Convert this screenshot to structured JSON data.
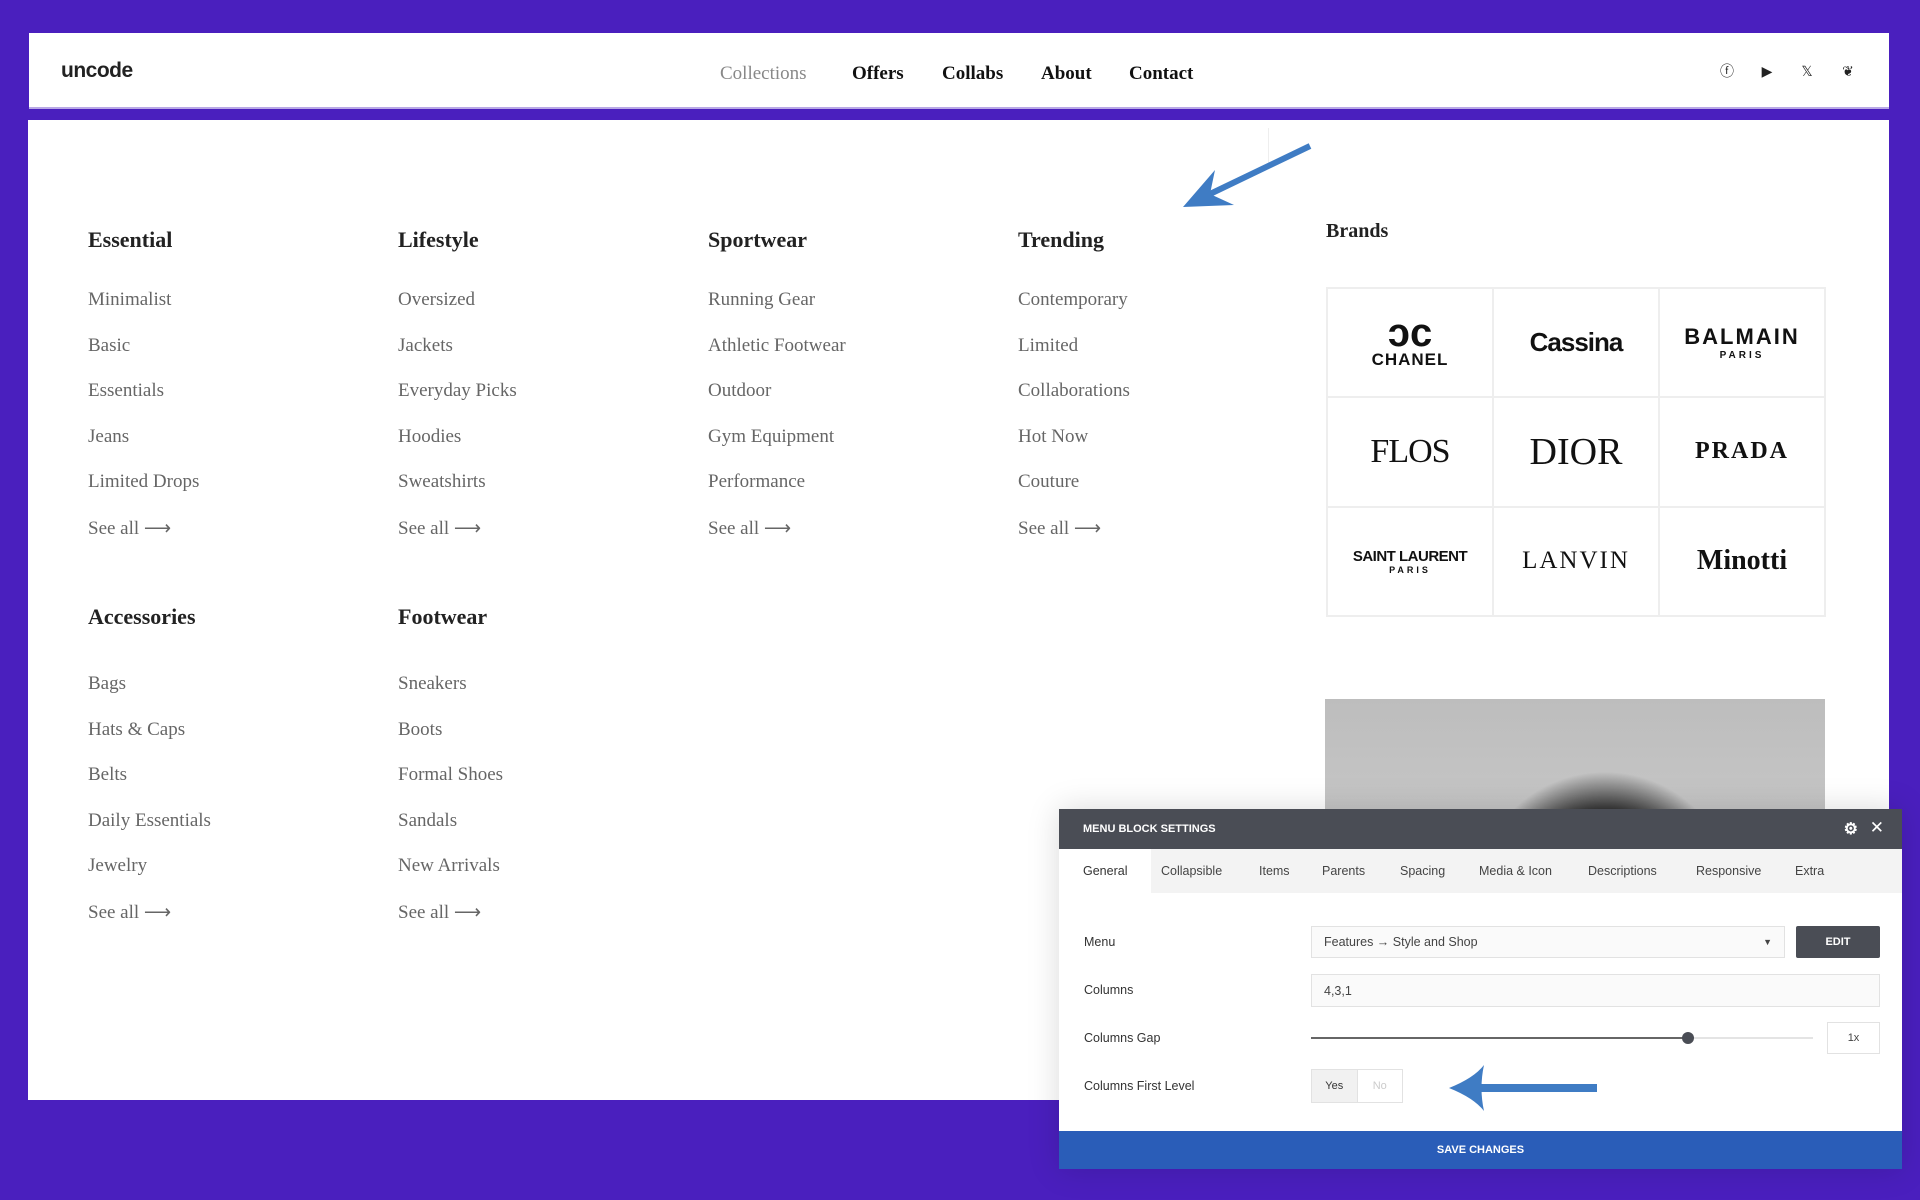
{
  "header": {
    "logo": "uncode",
    "nav": [
      "Collections",
      "Offers",
      "Collabs",
      "About",
      "Contact"
    ],
    "social_icons": [
      "facebook-icon",
      "youtube-icon",
      "x-icon",
      "leaf-icon"
    ]
  },
  "menu": {
    "columns": [
      {
        "title": "Essential",
        "items": [
          "Minimalist",
          "Basic",
          "Essentials",
          "Jeans",
          "Limited Drops",
          "See all ⟶"
        ]
      },
      {
        "title": "Lifestyle",
        "items": [
          "Oversized",
          "Jackets",
          "Everyday Picks",
          "Hoodies",
          "Sweatshirts",
          "See all ⟶"
        ]
      },
      {
        "title": "Sportwear",
        "items": [
          "Running Gear",
          "Athletic Footwear",
          "Outdoor",
          "Gym Equipment",
          "Performance",
          "See all ⟶"
        ]
      },
      {
        "title": "Trending",
        "items": [
          "Contemporary",
          "Limited",
          "Collaborations",
          "Hot Now",
          "Couture",
          "See all ⟶"
        ]
      },
      {
        "title": "Accessories",
        "items": [
          "Bags",
          "Hats & Caps",
          "Belts",
          "Daily Essentials",
          "Jewelry",
          "See all ⟶"
        ]
      },
      {
        "title": "Footwear",
        "items": [
          "Sneakers",
          "Boots",
          "Formal Shoes",
          "Sandals",
          "New Arrivals",
          "See all ⟶"
        ]
      }
    ],
    "brands_title": "Brands",
    "brands": [
      "CHANEL",
      "Cassina",
      "BALMAIN",
      "FLOS",
      "DIOR",
      "PRADA",
      "SAINT LAURENT",
      "LANVIN",
      "Minotti"
    ]
  },
  "panel": {
    "title": "MENU BLOCK SETTINGS",
    "tabs": [
      "General",
      "Collapsible",
      "Items",
      "Parents",
      "Spacing",
      "Media & Icon",
      "Descriptions",
      "Responsive",
      "Extra"
    ],
    "menu_label": "Menu",
    "menu_value": "Features → Style and Shop",
    "edit": "EDIT",
    "columns_label": "Columns",
    "columns_value": "4,3,1",
    "gap_label": "Columns Gap",
    "gap_value": "1x",
    "gap_slider_percent": 75,
    "first_level_label": "Columns First Level",
    "yes": "Yes",
    "no": "No",
    "first_level_selected": "Yes",
    "save": "SAVE CHANGES"
  },
  "colors": {
    "background": "#4a1fbe",
    "save_bar": "#2a5db8",
    "panel_header": "#4a4d55",
    "arrow": "#3f7cc4"
  }
}
